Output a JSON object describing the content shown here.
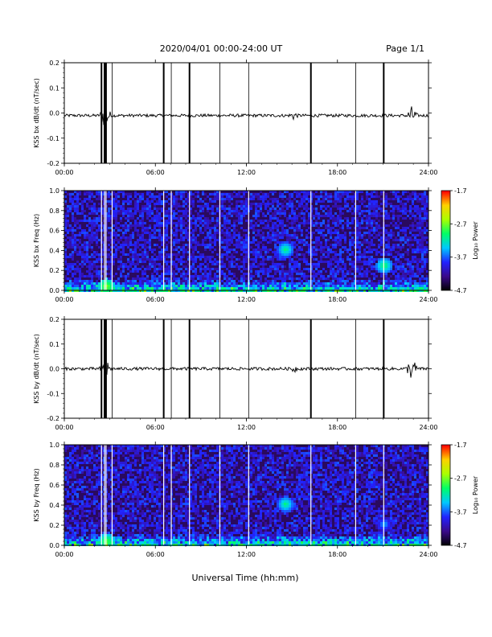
{
  "header": {
    "date_range": "2020/04/01  00:00-24:00 UT",
    "page": "Page 1/1"
  },
  "colors": {
    "spectrogram_background": "#2a0a5e",
    "trace": "#000000",
    "colormap": [
      "#000000",
      "#3a0a8a",
      "#2222ff",
      "#00c8ff",
      "#00ff66",
      "#aaff00",
      "#ffd000",
      "#ff0000"
    ]
  },
  "chart_data": [
    {
      "type": "line",
      "title": "",
      "ylabel": "KSS bx dB/dt (nT/sec)",
      "xlabel": "",
      "xlim": [
        0,
        24
      ],
      "ylim": [
        -0.2,
        0.2
      ],
      "x_ticks": [
        "00:00",
        "06:00",
        "12:00",
        "18:00",
        "24:00"
      ],
      "y_ticks": [
        "-0.2",
        "-0.1",
        "0.0",
        "0.1",
        "0.2"
      ],
      "baseline": -0.01,
      "gap_lines_hours": [
        2.45,
        2.65,
        2.75,
        3.15,
        6.55,
        7.05,
        8.25,
        10.25,
        12.15,
        16.25,
        19.2,
        21.05
      ],
      "spike_hours": [
        2.45,
        2.65,
        2.75,
        6.55,
        8.25,
        16.25,
        21.05
      ],
      "noise_bursts": [
        {
          "hour": 2.7,
          "amplitude": 0.06
        },
        {
          "hour": 15.1,
          "amplitude": 0.02
        },
        {
          "hour": 22.9,
          "amplitude": 0.04
        }
      ]
    },
    {
      "type": "heatmap",
      "title": "",
      "ylabel": "KSS bx Freq (Hz)",
      "xlabel": "",
      "xlim": [
        0,
        24
      ],
      "ylim": [
        0.0,
        1.0
      ],
      "x_ticks": [
        "00:00",
        "06:00",
        "12:00",
        "18:00",
        "24:00"
      ],
      "y_ticks": [
        "0.0",
        "0.2",
        "0.4",
        "0.6",
        "0.8",
        "1.0"
      ],
      "colorbar_label": "Log₁₀ Power",
      "colorbar_range": [
        -4.7,
        -1.7
      ],
      "colorbar_ticks": [
        "-1.7",
        "-2.7",
        "-3.7",
        "-4.7"
      ],
      "gap_lines_hours": [
        2.45,
        2.65,
        2.75,
        3.15,
        6.55,
        7.05,
        8.25,
        10.25,
        12.15,
        16.25,
        19.2,
        21.05
      ],
      "features": [
        {
          "hour": 14.5,
          "freq": 0.42,
          "level": -3.0
        },
        {
          "hour": 21.0,
          "freq": 0.26,
          "level": -2.9
        },
        {
          "hour": 2.7,
          "freq": 0.05,
          "level": -2.6
        }
      ]
    },
    {
      "type": "line",
      "title": "",
      "ylabel": "KSS by dB/dt (nT/sec)",
      "xlabel": "",
      "xlim": [
        0,
        24
      ],
      "ylim": [
        -0.2,
        0.2
      ],
      "x_ticks": [
        "00:00",
        "06:00",
        "12:00",
        "18:00",
        "24:00"
      ],
      "y_ticks": [
        "-0.2",
        "-0.1",
        "0.0",
        "0.1",
        "0.2"
      ],
      "baseline": 0.0,
      "gap_lines_hours": [
        2.45,
        2.65,
        2.75,
        3.15,
        6.55,
        7.05,
        8.25,
        10.25,
        12.15,
        16.25,
        19.2,
        21.05
      ],
      "spike_hours": [
        2.45,
        2.65,
        2.75,
        6.55,
        8.25,
        16.25,
        21.05
      ],
      "noise_bursts": [
        {
          "hour": 2.7,
          "amplitude": 0.05
        },
        {
          "hour": 15.1,
          "amplitude": 0.02
        },
        {
          "hour": 22.9,
          "amplitude": 0.05
        }
      ]
    },
    {
      "type": "heatmap",
      "title": "",
      "ylabel": "KSS by Freq (Hz)",
      "xlabel": "Universal Time (hh:mm)",
      "xlim": [
        0,
        24
      ],
      "ylim": [
        0.0,
        1.0
      ],
      "x_ticks": [
        "00:00",
        "06:00",
        "12:00",
        "18:00",
        "24:00"
      ],
      "y_ticks": [
        "0.0",
        "0.2",
        "0.4",
        "0.6",
        "0.8",
        "1.0"
      ],
      "colorbar_label": "Log₁₀ Power",
      "colorbar_range": [
        -4.7,
        -1.7
      ],
      "colorbar_ticks": [
        "-1.7",
        "-2.7",
        "-3.7",
        "-4.7"
      ],
      "gap_lines_hours": [
        2.45,
        2.65,
        2.75,
        3.15,
        6.55,
        7.05,
        8.25,
        10.25,
        12.15,
        16.25,
        19.2,
        21.05
      ],
      "features": [
        {
          "hour": 14.5,
          "freq": 0.42,
          "level": -3.0
        },
        {
          "hour": 21.0,
          "freq": 0.22,
          "level": -3.4
        },
        {
          "hour": 2.7,
          "freq": 0.05,
          "level": -2.7
        }
      ]
    }
  ]
}
